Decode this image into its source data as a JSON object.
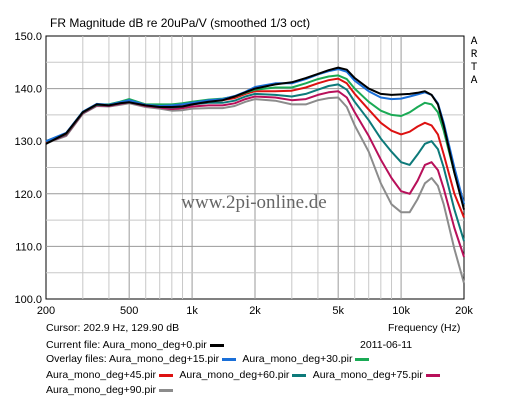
{
  "chart_data": {
    "type": "line",
    "title": "FR Magnitude dB re 20uPa/V (smoothed 1/3 oct)",
    "xlabel": "Frequency (Hz)",
    "ylabel": "",
    "x_scale": "log",
    "xlim": [
      200,
      20000
    ],
    "ylim": [
      100,
      150
    ],
    "grid": true,
    "y_ticks": [
      "150.0",
      "140.0",
      "130.0",
      "120.0",
      "110.0",
      "100.0"
    ],
    "y_tick_values": [
      150,
      140,
      130,
      120,
      110,
      100
    ],
    "x_ticks": [
      {
        "label": "200",
        "value": 200
      },
      {
        "label": "500",
        "value": 500
      },
      {
        "label": "1k",
        "value": 1000
      },
      {
        "label": "2k",
        "value": 2000
      },
      {
        "label": "5k",
        "value": 5000
      },
      {
        "label": "10k",
        "value": 10000
      },
      {
        "label": "20k",
        "value": 20000
      }
    ],
    "x": [
      200,
      250,
      300,
      350,
      400,
      450,
      500,
      600,
      700,
      800,
      900,
      1000,
      1200,
      1400,
      1600,
      1800,
      2000,
      2500,
      3000,
      3500,
      4000,
      4500,
      5000,
      5500,
      6000,
      7000,
      8000,
      9000,
      10000,
      11000,
      12000,
      13000,
      14000,
      15000,
      16000,
      18000,
      20000
    ],
    "series": [
      {
        "name": "Aura_mono_deg+0.pir",
        "color": "#000000",
        "values": [
          129.5,
          131.5,
          135.5,
          137.0,
          136.8,
          137.2,
          137.4,
          136.8,
          136.5,
          136.5,
          136.6,
          137.0,
          137.5,
          137.8,
          138.5,
          139.3,
          140.0,
          140.8,
          141.2,
          142.0,
          142.8,
          143.5,
          144.0,
          143.6,
          142.0,
          140.0,
          139.0,
          138.8,
          138.9,
          139.0,
          139.2,
          139.5,
          138.8,
          137.0,
          133.0,
          124.0,
          117.0
        ]
      },
      {
        "name": "Aura_mono_deg+15.pir",
        "color": "#1a6fd8",
        "values": [
          130.0,
          131.6,
          135.6,
          137.1,
          136.9,
          137.4,
          137.8,
          136.9,
          136.7,
          136.8,
          137.0,
          137.3,
          137.8,
          138.0,
          138.6,
          139.4,
          140.3,
          141.0,
          141.0,
          141.8,
          142.7,
          143.3,
          143.7,
          143.2,
          141.5,
          139.5,
          138.3,
          138.0,
          138.1,
          138.5,
          138.9,
          139.3,
          138.8,
          137.2,
          133.5,
          125.0,
          118.0
        ]
      },
      {
        "name": "Aura_mono_deg+30.pir",
        "color": "#1aaa55",
        "values": [
          130.0,
          131.5,
          135.6,
          137.0,
          137.0,
          137.5,
          138.0,
          137.0,
          137.0,
          137.0,
          137.2,
          137.5,
          137.9,
          138.1,
          138.5,
          139.2,
          139.8,
          140.2,
          140.2,
          141.0,
          141.8,
          142.3,
          142.5,
          141.8,
          140.0,
          137.5,
          135.8,
          135.0,
          134.8,
          135.5,
          136.5,
          137.3,
          137.0,
          135.5,
          132.0,
          124.0,
          118.0
        ]
      },
      {
        "name": "Aura_mono_deg+45.pir",
        "color": "#dd1111",
        "values": [
          129.8,
          131.4,
          135.5,
          137.0,
          136.9,
          137.4,
          137.8,
          137.0,
          136.8,
          136.7,
          136.9,
          137.3,
          137.7,
          137.8,
          138.2,
          139.0,
          139.5,
          139.5,
          139.6,
          140.2,
          141.0,
          141.6,
          141.9,
          141.0,
          139.0,
          136.0,
          133.5,
          132.0,
          131.3,
          131.8,
          132.8,
          133.5,
          133.0,
          131.3,
          127.5,
          120.0,
          115.5
        ]
      },
      {
        "name": "Aura_mono_deg+60.pir",
        "color": "#0d7a7a",
        "values": [
          129.8,
          131.3,
          135.4,
          136.9,
          136.8,
          137.2,
          137.6,
          136.9,
          136.6,
          136.4,
          136.6,
          137.0,
          137.3,
          137.3,
          137.7,
          138.5,
          139.0,
          138.8,
          138.5,
          139.0,
          139.8,
          140.5,
          140.8,
          139.8,
          137.5,
          134.0,
          130.5,
          128.0,
          126.0,
          125.5,
          127.5,
          129.5,
          130.0,
          128.5,
          125.0,
          117.0,
          111.0
        ]
      },
      {
        "name": "Aura_mono_deg+75.pir",
        "color": "#b8105a",
        "values": [
          129.7,
          131.2,
          135.3,
          136.8,
          136.7,
          137.1,
          137.4,
          136.7,
          136.4,
          136.1,
          136.3,
          136.6,
          136.8,
          136.8,
          137.2,
          138.0,
          138.5,
          138.3,
          137.8,
          138.0,
          138.8,
          139.3,
          139.5,
          138.3,
          135.5,
          131.0,
          126.5,
          123.0,
          120.5,
          120.0,
          122.5,
          125.5,
          126.0,
          124.5,
          121.0,
          113.5,
          108.0
        ]
      },
      {
        "name": "Aura_mono_deg+90.pir",
        "color": "#8c8c8c",
        "values": [
          129.6,
          131.0,
          135.2,
          136.7,
          136.6,
          136.9,
          137.2,
          136.5,
          136.2,
          135.8,
          135.9,
          136.2,
          136.3,
          136.3,
          136.7,
          137.5,
          138.0,
          137.7,
          137.0,
          137.0,
          137.8,
          138.2,
          138.3,
          136.5,
          133.0,
          128.0,
          122.0,
          118.0,
          116.5,
          116.5,
          119.0,
          122.0,
          123.0,
          121.5,
          118.0,
          109.5,
          103.0
        ]
      }
    ],
    "watermark": "www.2pi-online.de"
  },
  "side_label": [
    "A",
    "R",
    "T",
    "A"
  ],
  "footer": {
    "cursor": "Cursor: 202.9 Hz, 129.90 dB",
    "frequency_label": "Frequency (Hz)",
    "current_file": "Current file: Aura_mono_deg+0.pir",
    "date": "2011-06-11",
    "overlay_prefix": "Overlay files:",
    "overlay_line2_a": "Aura_mono_deg+45.pir",
    "overlay_line2_b": "Aura_mono_deg+60.pir",
    "overlay_line2_c": "Aura_mono_deg+75.pir",
    "overlay_line1_a": "Aura_mono_deg+15.pir",
    "overlay_line1_b": "Aura_mono_deg+30.pir",
    "overlay_line3_a": "Aura_mono_deg+90.pir"
  }
}
